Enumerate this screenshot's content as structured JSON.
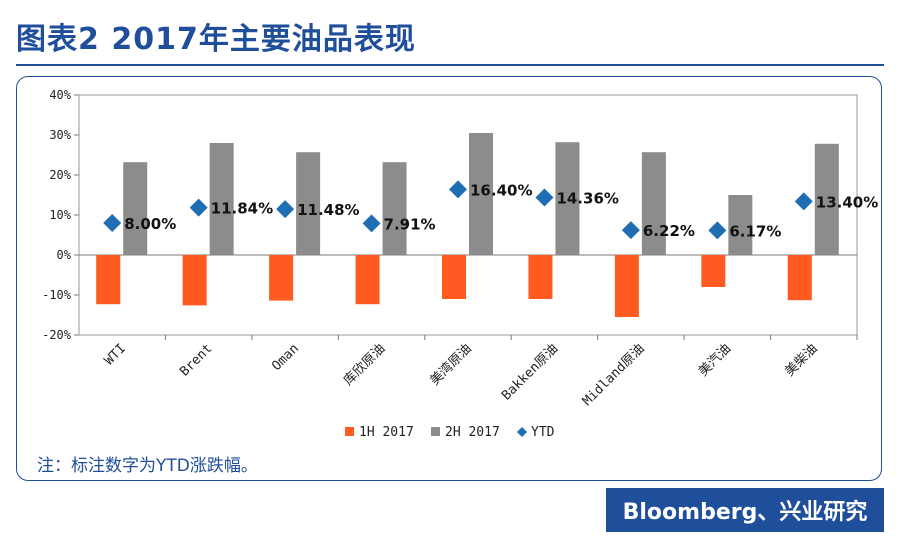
{
  "page": {
    "title": "图表2 2017年主要油品表现",
    "note": "注：标注数字为YTD涨跌幅。",
    "source": "Bloomberg、兴业研究"
  },
  "colors": {
    "series_1h": "#ff5a1f",
    "series_2h": "#8c8c8c",
    "series_ytd": "#1f6db3",
    "brand": "#1f4e9a"
  },
  "chart_data": {
    "type": "bar",
    "categories": [
      "WTI",
      "Brent",
      "Oman",
      "库欣原油",
      "美湾原油",
      "Bakken原油",
      "Midland原油",
      "美汽油",
      "美柴油"
    ],
    "series": [
      {
        "name": "1H 2017",
        "type": "bar",
        "values": [
          -12.3,
          -12.6,
          -11.4,
          -12.3,
          -11.0,
          -11.0,
          -15.5,
          -8.0,
          -11.3
        ]
      },
      {
        "name": "2H 2017",
        "type": "bar",
        "values": [
          23.2,
          28.0,
          25.7,
          23.2,
          30.5,
          28.2,
          25.7,
          15.0,
          27.8
        ]
      },
      {
        "name": "YTD",
        "type": "scatter",
        "values": [
          8.0,
          11.84,
          11.48,
          7.91,
          16.4,
          14.36,
          6.22,
          6.17,
          13.4
        ]
      }
    ],
    "data_labels": [
      "8.00%",
      "11.84%",
      "11.48%",
      "7.91%",
      "16.40%",
      "14.36%",
      "6.22%",
      "6.17%",
      "13.40%"
    ],
    "y_ticks": [
      "40%",
      "30%",
      "20%",
      "10%",
      "0%",
      "-10%",
      "-20%"
    ],
    "ylim": [
      -20,
      40
    ],
    "legend_position": "bottom",
    "grid": false
  }
}
